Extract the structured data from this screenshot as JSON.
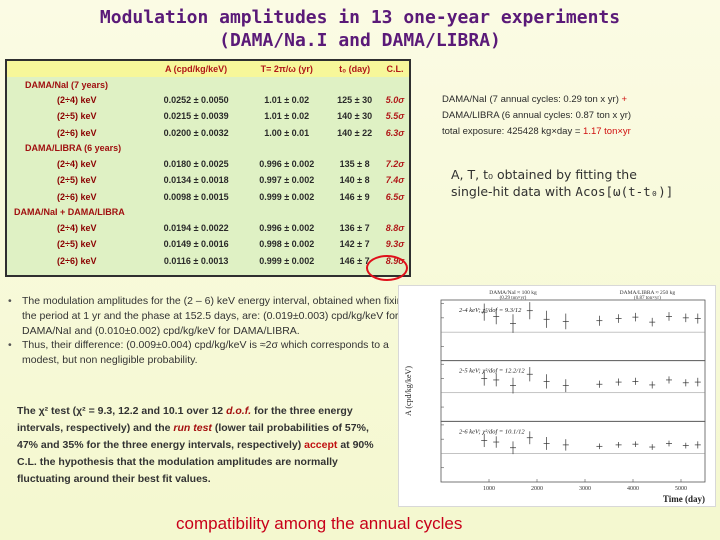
{
  "title": {
    "line1": "Modulation amplitudes in 13 one-year experiments",
    "line2": "(DAMA/Na.I and DAMA/LIBRA)"
  },
  "table": {
    "headers": [
      "A (cpd/kg/keV)",
      "T= 2π/ω (yr)",
      "t₀ (day)",
      "C.L."
    ],
    "groups": [
      {
        "name": "DAMA/NaI (7 years)",
        "rows": [
          {
            "range": "(2÷4) keV",
            "A": "0.0252 ± 0.0050",
            "T": "1.01 ± 0.02",
            "t0": "125 ± 30",
            "cl": "5.0σ"
          },
          {
            "range": "(2÷5) keV",
            "A": "0.0215 ± 0.0039",
            "T": "1.01 ± 0.02",
            "t0": "140 ± 30",
            "cl": "5.5σ"
          },
          {
            "range": "(2÷6) keV",
            "A": "0.0200 ± 0.0032",
            "T": "1.00 ± 0.01",
            "t0": "140 ± 22",
            "cl": "6.3σ"
          }
        ]
      },
      {
        "name": "DAMA/LIBRA (6 years)",
        "rows": [
          {
            "range": "(2÷4) keV",
            "A": "0.0180 ± 0.0025",
            "T": "0.996 ± 0.002",
            "t0": "135 ± 8",
            "cl": "7.2σ"
          },
          {
            "range": "(2÷5) keV",
            "A": "0.0134 ± 0.0018",
            "T": "0.997 ± 0.002",
            "t0": "140 ± 8",
            "cl": "7.4σ"
          },
          {
            "range": "(2÷6) keV",
            "A": "0.0098 ± 0.0015",
            "T": "0.999 ± 0.002",
            "t0": "146 ± 9",
            "cl": "6.5σ"
          }
        ]
      },
      {
        "name": "DAMA/NaI + DAMA/LIBRA",
        "rows": [
          {
            "range": "(2÷4) keV",
            "A": "0.0194 ± 0.0022",
            "T": "0.996 ± 0.002",
            "t0": "136 ± 7",
            "cl": "8.8σ"
          },
          {
            "range": "(2÷5) keV",
            "A": "0.0149 ± 0.0016",
            "T": "0.998 ± 0.002",
            "t0": "142 ± 7",
            "cl": "9.3σ"
          },
          {
            "range": "(2÷6) keV",
            "A": "0.0116 ± 0.0013",
            "T": "0.999 ± 0.002",
            "t0": "146 ± 7",
            "cl": "8.9σ"
          }
        ]
      }
    ]
  },
  "notes": {
    "exposure_line1": "DAMA/NaI (7 annual cycles: 0.29 ton x yr)",
    "exposure_plus": "+",
    "exposure_line2": "DAMA/LIBRA (6 annual cycles: 0.87 ton x yr)",
    "exposure_line3_pre": "total exposure: 425428 kg×day = ",
    "exposure_line3_val": "1.17 ton×yr",
    "fit_line1": "A, T, t₀ obtained by fitting the",
    "fit_line2_pre": "single-hit data with ",
    "fit_formula": "Acos[ω(t-t₀)]"
  },
  "bullets": [
    "The modulation amplitudes for the (2 – 6) keV energy interval, obtained when fixing the period at 1 yr and the phase at 152.5 days, are: (0.019±0.003) cpd/kg/keV for DAMA/NaI and (0.010±0.002) cpd/kg/keV for DAMA/LIBRA.",
    "Thus, their difference: (0.009±0.004) cpd/kg/keV is ≈2σ which corresponds to a modest, but non negligible probability."
  ],
  "chi_text": {
    "p1": "The χ² test (χ² = 9.3, 12.2 and 10.1 over 12 ",
    "dof": "d.o.f.",
    "p2": " for the three energy intervals, respectively) and the ",
    "run": "run test",
    "p3": " (lower tail probabilities of 57%, 47% and 35% for the three energy intervals, respectively) ",
    "accept": "accept",
    "p4": " at 90% C.L. the hypothesis that the modulation amplitudes are normally fluctuating around their best fit values."
  },
  "chart_data": {
    "type": "scatter",
    "xlabel": "Time (day)",
    "ylabel": "A (cpd/kg/keV)",
    "xlim": [
      0,
      5500
    ],
    "xticks": [
      "1000",
      "2000",
      "3000",
      "4000",
      "5000"
    ],
    "ylim": [
      -0.04,
      0.045
    ],
    "top_labels": [
      "DAMA/NaI ≈ 100 kg",
      "(0.29 ton×yr)",
      "DAMA/LIBRA ≈ 250 kg",
      "(0.87 ton×yr)"
    ],
    "panels": [
      {
        "name": "2-4 keV",
        "label": "2-4 keV;  χ²/dof = 9.3/12",
        "x": [
          900,
          1150,
          1500,
          1850,
          2200,
          2600,
          3300,
          3700,
          4050,
          4400,
          4750,
          5100,
          5350
        ],
        "y": [
          0.028,
          0.022,
          0.012,
          0.03,
          0.018,
          0.015,
          0.016,
          0.019,
          0.021,
          0.014,
          0.022,
          0.02,
          0.019
        ],
        "err": [
          0.012,
          0.011,
          0.013,
          0.012,
          0.012,
          0.011,
          0.007,
          0.006,
          0.006,
          0.006,
          0.006,
          0.006,
          0.007
        ]
      },
      {
        "name": "2-5 keV",
        "label": "2-5 keV;  χ²/dof = 12.2/12",
        "x": [
          900,
          1150,
          1500,
          1850,
          2200,
          2600,
          3300,
          3700,
          4050,
          4400,
          4750,
          5100,
          5350
        ],
        "y": [
          0.02,
          0.018,
          0.01,
          0.026,
          0.016,
          0.01,
          0.012,
          0.015,
          0.016,
          0.011,
          0.018,
          0.014,
          0.015
        ],
        "err": [
          0.01,
          0.009,
          0.011,
          0.01,
          0.01,
          0.009,
          0.005,
          0.005,
          0.005,
          0.005,
          0.005,
          0.005,
          0.006
        ]
      },
      {
        "name": "2-6 keV",
        "label": "2-6 keV;  χ²/dof = 10.1/12",
        "x": [
          900,
          1150,
          1500,
          1850,
          2200,
          2600,
          3300,
          3700,
          4050,
          4400,
          4750,
          5100,
          5350
        ],
        "y": [
          0.018,
          0.016,
          0.008,
          0.022,
          0.014,
          0.012,
          0.01,
          0.012,
          0.013,
          0.009,
          0.014,
          0.011,
          0.012
        ],
        "err": [
          0.009,
          0.008,
          0.009,
          0.009,
          0.009,
          0.008,
          0.004,
          0.004,
          0.004,
          0.004,
          0.004,
          0.004,
          0.005
        ]
      }
    ]
  },
  "bottom": "compatibility among the annual cycles",
  "colors": {
    "title": "#5a1a78",
    "accent_red": "#c8001a",
    "table_bg": "#dff1c4",
    "header_bg": "#f7f79a"
  }
}
